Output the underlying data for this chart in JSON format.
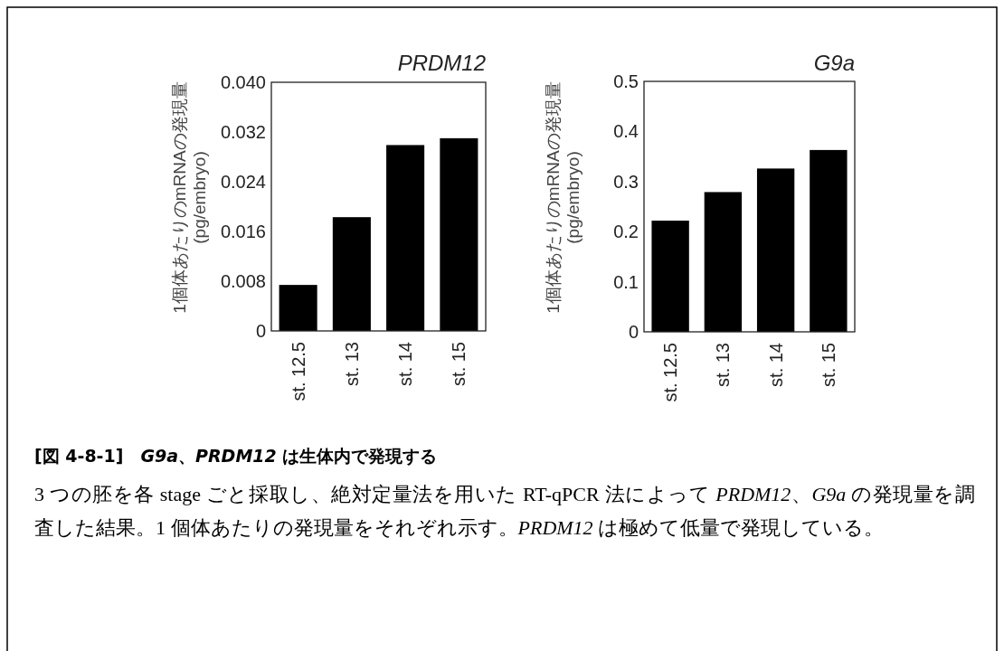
{
  "chart_data": [
    {
      "type": "bar",
      "title": "PRDM12",
      "ylabel": "1個体あたりのmRNAの発現量\n(pg/embryo)",
      "categories": [
        "st. 12.5",
        "st. 13",
        "st. 14",
        "st. 15"
      ],
      "values": [
        0.0074,
        0.0183,
        0.0299,
        0.031
      ],
      "color": "#000000",
      "ylim": [
        0,
        0.04
      ],
      "yticks": [
        0,
        0.008,
        0.016,
        0.024,
        0.032,
        {
          "value": 0.04,
          "label": "0.040"
        }
      ],
      "grid": false,
      "annotations": [
        "[図 4-8-1]　*G9a*、*PRDM12* は生体内で発現する",
        "3 つの胚を各 stage ごと採取し、絶対定量法を用いた RT-qPCR 法によって *PRDM12*、*G9a* の発現量を調査した結果。1 個体あたりの発現量をそれぞれ示す。*PRDM12* は極めて低量で発現している。"
      ]
    },
    {
      "type": "bar",
      "title": "G9a",
      "ylabel": "1個体あたりのmRNAの発現量\n(pg/embryo)",
      "categories": [
        "st. 12.5",
        "st. 13",
        "st. 14",
        "st. 15"
      ],
      "values": [
        0.222,
        0.279,
        0.326,
        0.363
      ],
      "color": "#000000",
      "ylim": [
        0,
        0.5
      ],
      "yticks": [
        0,
        0.1,
        0.2,
        0.3,
        0.4,
        0.5
      ],
      "grid": false
    }
  ]
}
